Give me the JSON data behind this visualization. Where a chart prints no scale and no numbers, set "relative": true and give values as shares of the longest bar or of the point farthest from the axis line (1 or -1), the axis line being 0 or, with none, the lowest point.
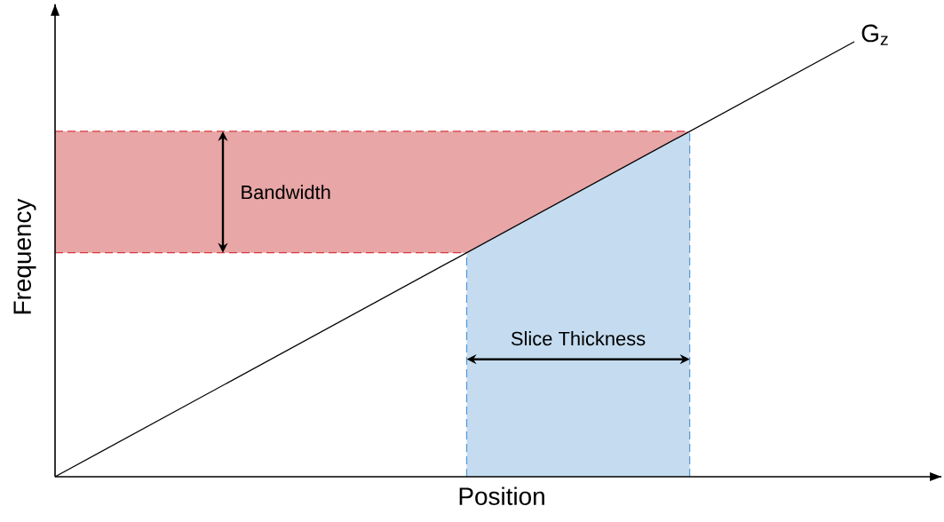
{
  "chart_data": {
    "type": "line",
    "relative": true,
    "xlabel": "Position",
    "ylabel": "Frequency",
    "categories": [
      null,
      null
    ],
    "series": [
      {
        "name": "G$_{z}$",
        "color": "#000000",
        "values": [
          0,
          1
        ]
      }
    ],
    "bands": [
      {
        "axis": "y",
        "from": 0.515,
        "to": 0.794,
        "color": "#e8a6a6"
      }
    ],
    "ref_lines": [
      {
        "axis": "y",
        "value": 0.515,
        "color": "#d9363e",
        "line_style": "dashed"
      },
      {
        "axis": "y",
        "value": 0.794,
        "color": "#d9363e",
        "line_style": "dashed"
      }
    ],
    "annotations": [
      "Bandwidth",
      "Slice Thickness"
    ],
    "marker": "none",
    "line_style": "solid",
    "legend": false
  }
}
